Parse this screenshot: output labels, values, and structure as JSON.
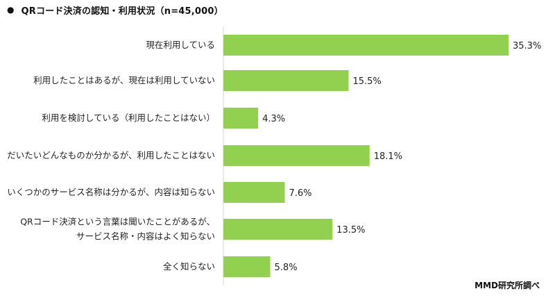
{
  "title": {
    "bullet": "●",
    "text": "QRコード決済の認知・利用状況（n=45,000）"
  },
  "source": "MMD研究所調べ",
  "chart_data": {
    "type": "bar",
    "orientation": "horizontal",
    "title": "QRコード決済の認知・利用状況（n=45,000）",
    "xlabel": "",
    "ylabel": "",
    "xlim": [
      0,
      36
    ],
    "grid": false,
    "legend": "none",
    "bar_color": "#92d050",
    "categories": [
      [
        "現在利用している"
      ],
      [
        "利用したことはあるが、現在は利用していない"
      ],
      [
        "利用を検討している（利用したことはない）"
      ],
      [
        "だいたいどんなものか分かるが、利用したことはない"
      ],
      [
        "いくつかのサービス名称は分かるが、内容は知らない"
      ],
      [
        "QRコード決済という言葉は聞いたことがあるが、",
        "サービス名称・内容はよく知らない"
      ],
      [
        "全く知らない"
      ]
    ],
    "values": [
      35.3,
      15.5,
      4.3,
      18.1,
      7.6,
      13.5,
      5.8
    ],
    "value_labels": [
      "35.3%",
      "15.5%",
      "4.3%",
      "18.1%",
      "7.6%",
      "13.5%",
      "5.8%"
    ]
  }
}
